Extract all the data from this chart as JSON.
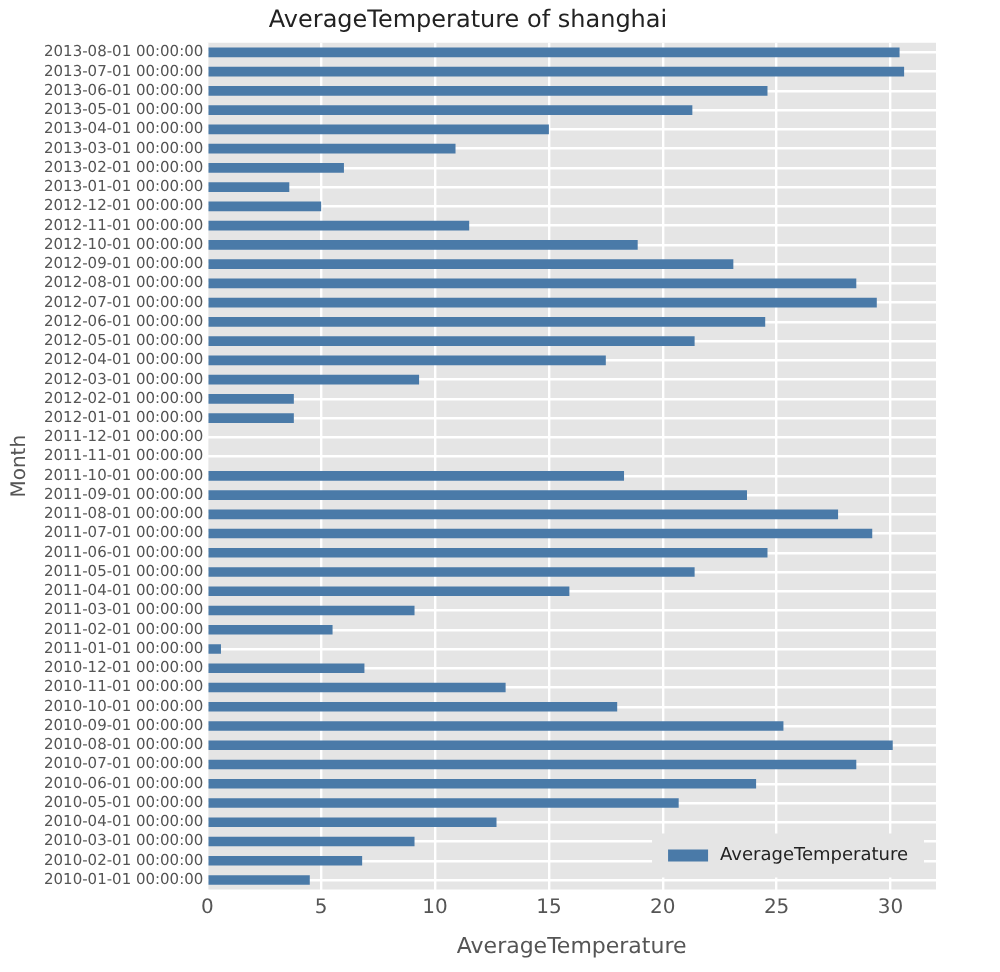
{
  "chart_data": {
    "type": "bar",
    "orientation": "horizontal",
    "title": "AverageTemperature of shanghai",
    "xlabel": "AverageTemperature",
    "ylabel": "Month",
    "categories": [
      "2013-08-01 00:00:00",
      "2013-07-01 00:00:00",
      "2013-06-01 00:00:00",
      "2013-05-01 00:00:00",
      "2013-04-01 00:00:00",
      "2013-03-01 00:00:00",
      "2013-02-01 00:00:00",
      "2013-01-01 00:00:00",
      "2012-12-01 00:00:00",
      "2012-11-01 00:00:00",
      "2012-10-01 00:00:00",
      "2012-09-01 00:00:00",
      "2012-08-01 00:00:00",
      "2012-07-01 00:00:00",
      "2012-06-01 00:00:00",
      "2012-05-01 00:00:00",
      "2012-04-01 00:00:00",
      "2012-03-01 00:00:00",
      "2012-02-01 00:00:00",
      "2012-01-01 00:00:00",
      "2011-12-01 00:00:00",
      "2011-11-01 00:00:00",
      "2011-10-01 00:00:00",
      "2011-09-01 00:00:00",
      "2011-08-01 00:00:00",
      "2011-07-01 00:00:00",
      "2011-06-01 00:00:00",
      "2011-05-01 00:00:00",
      "2011-04-01 00:00:00",
      "2011-03-01 00:00:00",
      "2011-02-01 00:00:00",
      "2011-01-01 00:00:00",
      "2010-12-01 00:00:00",
      "2010-11-01 00:00:00",
      "2010-10-01 00:00:00",
      "2010-09-01 00:00:00",
      "2010-08-01 00:00:00",
      "2010-07-01 00:00:00",
      "2010-06-01 00:00:00",
      "2010-05-01 00:00:00",
      "2010-04-01 00:00:00",
      "2010-03-01 00:00:00",
      "2010-02-01 00:00:00",
      "2010-01-01 00:00:00"
    ],
    "series": [
      {
        "name": "AverageTemperature",
        "color": "#4a7aa8",
        "values": [
          30.4,
          30.6,
          24.6,
          21.3,
          15.0,
          10.9,
          6.0,
          3.6,
          5.0,
          11.5,
          18.9,
          23.1,
          28.5,
          29.4,
          24.5,
          21.4,
          17.5,
          9.3,
          3.8,
          3.8,
          null,
          null,
          18.3,
          23.7,
          27.7,
          29.2,
          24.6,
          21.4,
          15.9,
          9.1,
          5.5,
          0.6,
          6.9,
          13.1,
          18.0,
          25.3,
          30.1,
          28.5,
          24.1,
          20.7,
          12.7,
          9.1,
          6.8,
          4.5
        ]
      }
    ],
    "xlim": [
      0,
      32
    ],
    "xticks": [
      0,
      5,
      10,
      15,
      20,
      25,
      30
    ],
    "grid": true,
    "legend": "bottom right"
  }
}
